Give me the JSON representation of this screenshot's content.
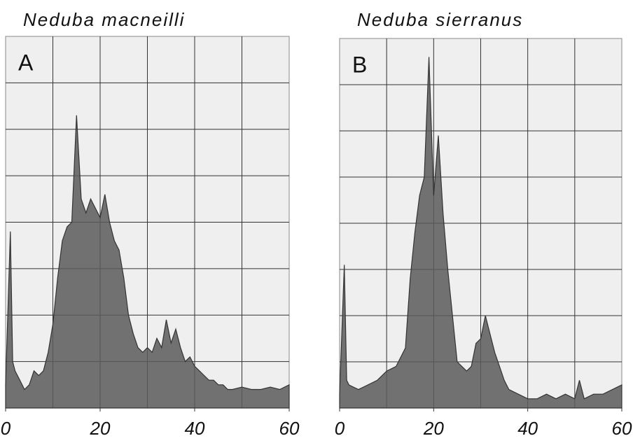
{
  "chart_data": [
    {
      "type": "area",
      "title": "Neduba macneilli",
      "panel_label": "A",
      "x": [
        0,
        1,
        1.5,
        2,
        3,
        4,
        5,
        6,
        7,
        8,
        9,
        10,
        11,
        12,
        13,
        14,
        15,
        16,
        17,
        18,
        19,
        20,
        21,
        22,
        23,
        24,
        25,
        26,
        27,
        28,
        29,
        30,
        31,
        32,
        33,
        34,
        35,
        36,
        37,
        38,
        39,
        40,
        41,
        42,
        43,
        44,
        45,
        46,
        47,
        48,
        50,
        52,
        54,
        56,
        58,
        60
      ],
      "values": [
        0.5,
        3.8,
        1.0,
        0.8,
        0.6,
        0.4,
        0.5,
        0.8,
        0.7,
        0.8,
        1.2,
        1.8,
        2.8,
        3.6,
        3.9,
        4.0,
        6.3,
        4.5,
        4.2,
        4.5,
        4.3,
        4.1,
        4.6,
        4.0,
        3.6,
        3.4,
        2.8,
        2.0,
        1.6,
        1.3,
        1.2,
        1.3,
        1.2,
        1.5,
        1.3,
        1.9,
        1.4,
        1.7,
        1.3,
        1.0,
        1.1,
        0.9,
        0.8,
        0.7,
        0.6,
        0.6,
        0.5,
        0.5,
        0.4,
        0.4,
        0.45,
        0.4,
        0.4,
        0.45,
        0.4,
        0.5
      ],
      "color": "#5a5a5a",
      "xlim": [
        0,
        60
      ],
      "ylim": [
        0,
        8
      ],
      "xticks": [
        0,
        20,
        40,
        60
      ],
      "grid": true
    },
    {
      "type": "area",
      "title": "Neduba sierranus",
      "panel_label": "B",
      "x": [
        0,
        1,
        1.5,
        2,
        4,
        6,
        8,
        10,
        12,
        14,
        15,
        16,
        17,
        18,
        19,
        20,
        21,
        22,
        23,
        24,
        25,
        26,
        27,
        28,
        29,
        30,
        31,
        32,
        33,
        34,
        35,
        36,
        38,
        40,
        42,
        44,
        46,
        48,
        50,
        51,
        52,
        54,
        56,
        58,
        60
      ],
      "values": [
        0.3,
        3.1,
        0.6,
        0.5,
        0.4,
        0.5,
        0.6,
        0.8,
        0.9,
        1.3,
        2.8,
        3.8,
        4.6,
        5.0,
        7.6,
        4.6,
        5.9,
        4.2,
        3.0,
        2.0,
        1.0,
        0.9,
        0.8,
        0.9,
        1.4,
        1.5,
        2.0,
        1.6,
        1.2,
        0.9,
        0.6,
        0.4,
        0.3,
        0.2,
        0.2,
        0.3,
        0.2,
        0.3,
        0.2,
        0.6,
        0.2,
        0.3,
        0.3,
        0.4,
        0.5
      ],
      "color": "#5a5a5a",
      "xlim": [
        0,
        60
      ],
      "ylim": [
        0,
        8
      ],
      "xticks": [
        0,
        20,
        40,
        60
      ],
      "grid": true
    }
  ]
}
